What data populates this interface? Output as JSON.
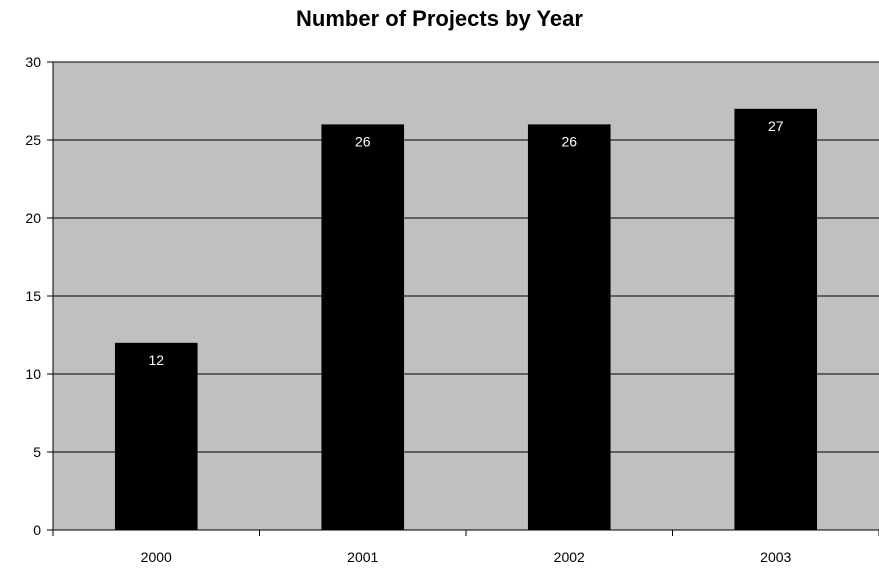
{
  "chart_data": {
    "type": "bar",
    "title": "Number of Projects by Year",
    "categories": [
      "2000",
      "2001",
      "2002",
      "2003"
    ],
    "values": [
      12,
      26,
      26,
      27
    ],
    "data_labels": [
      "12",
      "26",
      "26",
      "27"
    ],
    "xlabel": "",
    "ylabel": "",
    "ylim": [
      0,
      30
    ],
    "yticks": [
      "0",
      "5",
      "10",
      "15",
      "20",
      "25",
      "30"
    ],
    "grid": true,
    "legend": "none",
    "colors": {
      "plot_background": "#c0c0c0",
      "bar": "#000000",
      "gridline": "#000000",
      "data_label": "#ffffff"
    }
  }
}
